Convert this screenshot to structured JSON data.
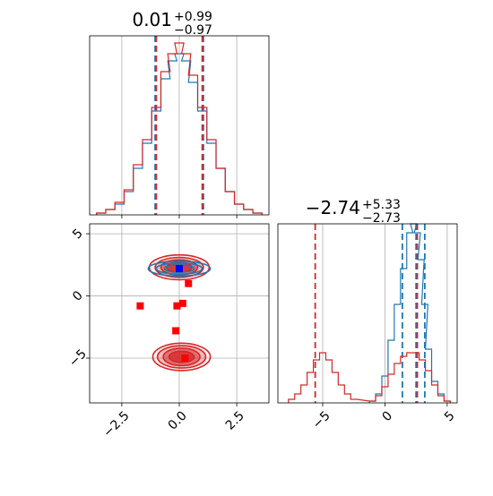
{
  "chart_data": [
    {
      "type": "histogram",
      "panel": "top-left-marginal",
      "title": {
        "value": "0.01",
        "plus": "+0.99",
        "minus": "−0.97"
      },
      "xlim": [
        -3.9,
        3.9
      ],
      "xticks": [
        -2.5,
        0.0,
        2.5
      ],
      "grid": true,
      "quantile_lines": {
        "blue": [
          -1.05,
          1.05
        ],
        "red": [
          -1.0,
          1.0
        ]
      },
      "series": [
        {
          "color": "#1f77b4",
          "x": [
            -3.4,
            -3.0,
            -2.6,
            -2.2,
            -1.8,
            -1.4,
            -1.0,
            -0.6,
            -0.3,
            0.0,
            0.3,
            0.6,
            1.0,
            1.4,
            1.8,
            2.2,
            2.6,
            3.0,
            3.4
          ],
          "values": [
            0.01,
            0.03,
            0.06,
            0.13,
            0.26,
            0.4,
            0.58,
            0.76,
            0.86,
            0.9,
            0.86,
            0.74,
            0.58,
            0.4,
            0.26,
            0.13,
            0.06,
            0.03,
            0.01
          ]
        },
        {
          "color": "#d62728",
          "x": [
            -3.4,
            -3.0,
            -2.6,
            -2.2,
            -1.8,
            -1.4,
            -1.0,
            -0.6,
            -0.3,
            0.0,
            0.3,
            0.6,
            1.0,
            1.4,
            1.8,
            2.2,
            2.6,
            3.0,
            3.4
          ],
          "values": [
            0.01,
            0.03,
            0.07,
            0.14,
            0.28,
            0.42,
            0.6,
            0.8,
            0.9,
            0.96,
            0.9,
            0.78,
            0.6,
            0.42,
            0.26,
            0.13,
            0.06,
            0.03,
            0.01
          ]
        }
      ]
    },
    {
      "type": "contour",
      "panel": "bottom-left-2d",
      "xlim": [
        -3.9,
        3.9
      ],
      "ylim": [
        -8.6,
        5.8
      ],
      "xticks": [
        -2.5,
        0.0,
        2.5
      ],
      "xtick_labels": [
        "−2.5",
        "0.0",
        "2.5"
      ],
      "yticks": [
        5,
        0,
        -5
      ],
      "ytick_labels": [
        "5",
        "0",
        "−5"
      ],
      "grid": true,
      "blobs": [
        {
          "color": "#d62728",
          "cx": 0.0,
          "cy": 2.3,
          "rx": [
            2.6,
            2.1,
            1.6,
            1.1
          ],
          "ry": [
            2.0,
            1.6,
            1.2,
            0.8
          ]
        },
        {
          "color": "#d62728",
          "cx": 0.1,
          "cy": -4.9,
          "rx": [
            2.5,
            2.1,
            1.6,
            1.1
          ],
          "ry": [
            2.2,
            1.8,
            1.4,
            0.9
          ]
        },
        {
          "color": "#1f77b4",
          "cx": 0.0,
          "cy": 2.2,
          "rx": [
            2.7,
            2.0,
            1.3
          ],
          "ry": [
            1.2,
            0.9,
            0.6
          ]
        }
      ],
      "red_markers": [
        {
          "x": 0.0,
          "y": 2.2
        },
        {
          "x": 0.4,
          "y": 1.0
        },
        {
          "x": -1.7,
          "y": -0.8
        },
        {
          "x": -0.1,
          "y": -0.8
        },
        {
          "x": 0.15,
          "y": -0.6
        },
        {
          "x": -0.15,
          "y": -2.8
        },
        {
          "x": 0.25,
          "y": -5.0
        }
      ],
      "blue_markers": [
        {
          "x": 0.0,
          "y": 2.2
        }
      ]
    },
    {
      "type": "histogram",
      "panel": "bottom-right-marginal",
      "title": {
        "value": "−2.74",
        "plus": "+5.33",
        "minus": "−2.73"
      },
      "xlim": [
        -8.6,
        5.8
      ],
      "xticks": [
        -5,
        0,
        5
      ],
      "xtick_labels": [
        "−5",
        "0",
        "5"
      ],
      "grid": true,
      "quantile_lines": {
        "blue": [
          1.4,
          2.5,
          3.2
        ],
        "red": [
          -5.6,
          2.6
        ]
      },
      "series": [
        {
          "color": "#1f77b4",
          "x": [
            -1.0,
            -0.5,
            0.0,
            0.5,
            1.0,
            1.5,
            2.0,
            2.3,
            2.6,
            2.9,
            3.2,
            3.5,
            4.0,
            4.5,
            5.0
          ],
          "values": [
            0.01,
            0.05,
            0.15,
            0.35,
            0.55,
            0.75,
            0.95,
            1.0,
            0.95,
            0.8,
            0.55,
            0.3,
            0.12,
            0.05,
            0.01
          ]
        },
        {
          "color": "#d62728",
          "x": [
            -7.5,
            -7.0,
            -6.5,
            -6.0,
            -5.5,
            -5.0,
            -4.5,
            -4.0,
            -3.5,
            -3.0,
            -2.5,
            -1.0,
            -0.5,
            0.0,
            0.5,
            1.0,
            1.5,
            2.0,
            2.5,
            3.0,
            3.5,
            4.0,
            4.5,
            5.0
          ],
          "values": [
            0.02,
            0.05,
            0.1,
            0.17,
            0.24,
            0.28,
            0.24,
            0.17,
            0.1,
            0.05,
            0.02,
            0.01,
            0.04,
            0.09,
            0.16,
            0.22,
            0.26,
            0.28,
            0.28,
            0.24,
            0.18,
            0.1,
            0.04,
            0.01
          ]
        }
      ]
    }
  ]
}
